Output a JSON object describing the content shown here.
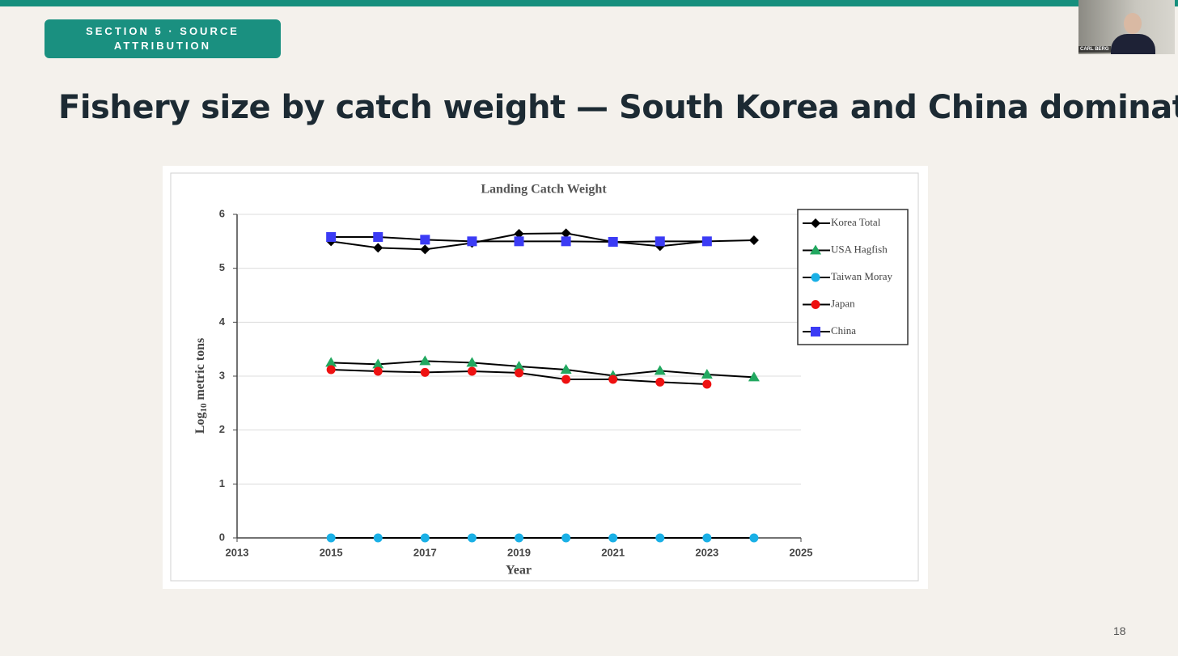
{
  "slide": {
    "section": "SECTION 5 · SOURCE ATTRIBUTION",
    "title": "Fishery size by catch weight — South Korea and China dominate",
    "page_number": "18",
    "presenter": "CARL BERG"
  },
  "chart_data": {
    "type": "line",
    "title": "Landing Catch Weight",
    "xlabel": "Year",
    "ylabel": [
      "Log",
      "10",
      " metric tons"
    ],
    "x": [
      2015,
      2016,
      2017,
      2018,
      2019,
      2020,
      2021,
      2022,
      2023,
      2024
    ],
    "xlim": [
      2013,
      2025
    ],
    "xticks": [
      2013,
      2015,
      2017,
      2019,
      2021,
      2023,
      2025
    ],
    "ylim": [
      0,
      6
    ],
    "yticks": [
      0,
      1,
      2,
      3,
      4,
      5,
      6
    ],
    "grid": true,
    "legend": "upper right",
    "line_color": "#000000",
    "series": [
      {
        "name": "Korea Total",
        "color": "#000000",
        "marker": "diamond",
        "values": [
          5.5,
          5.38,
          5.35,
          5.47,
          5.64,
          5.65,
          5.49,
          5.41,
          5.5,
          5.52
        ]
      },
      {
        "name": "USA Hagfish",
        "color": "#22a860",
        "marker": "triangle",
        "values": [
          3.25,
          3.22,
          3.28,
          3.25,
          3.18,
          3.12,
          3.01,
          3.1,
          3.03,
          2.98
        ]
      },
      {
        "name": "Taiwan Moray",
        "color": "#1ab0e6",
        "marker": "circle",
        "values": [
          0,
          0,
          0,
          0,
          0,
          0,
          0,
          0,
          0,
          0
        ]
      },
      {
        "name": "Japan",
        "color": "#ee1111",
        "marker": "circle",
        "values": [
          3.12,
          3.09,
          3.07,
          3.09,
          3.06,
          2.94,
          2.94,
          2.89,
          2.85,
          null
        ]
      },
      {
        "name": "China",
        "color": "#3b3bf5",
        "marker": "square",
        "values": [
          5.58,
          5.58,
          5.53,
          5.5,
          5.5,
          5.5,
          5.49,
          5.5,
          5.5,
          null
        ]
      }
    ]
  }
}
